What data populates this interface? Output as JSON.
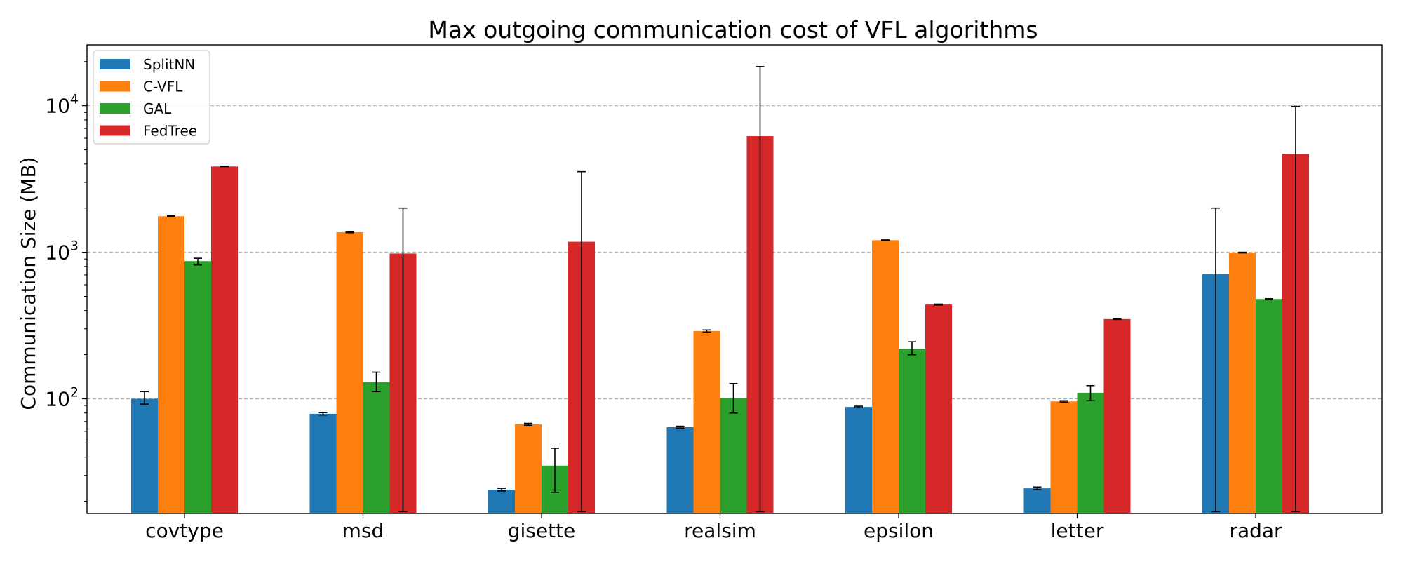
{
  "chart_data": {
    "type": "bar",
    "title": "Max outgoing communication cost of VFL algorithms",
    "xlabel": "",
    "ylabel": "Communication Size (MB)",
    "yscale": "log",
    "ylim": [
      16.5,
      26000
    ],
    "grid": "y-major-dashed",
    "legend_position": "top-left",
    "categories": [
      "covtype",
      "msd",
      "gisette",
      "realsim",
      "epsilon",
      "letter",
      "radar"
    ],
    "y_ticks": [
      {
        "value": 100,
        "base": "10",
        "exp": "2"
      },
      {
        "value": 1000,
        "base": "10",
        "exp": "3"
      },
      {
        "value": 10000,
        "base": "10",
        "exp": "4"
      }
    ],
    "series": [
      {
        "name": "SplitNN",
        "color": "#1f77b4",
        "values": [
          100,
          79,
          24,
          64,
          88,
          24.5,
          710
        ],
        "err_low": [
          92,
          77.5,
          23.5,
          63,
          87,
          24,
          17
        ],
        "err_high": [
          112,
          80.5,
          24.5,
          65,
          89,
          25,
          2000
        ]
      },
      {
        "name": "C-VFL",
        "color": "#ff7f0e",
        "values": [
          1760,
          1370,
          67,
          290,
          1210,
          96,
          995
        ],
        "err_low": [
          1750,
          1360,
          66,
          285,
          1205,
          95,
          990
        ],
        "err_high": [
          1770,
          1380,
          68,
          295,
          1215,
          97,
          1000
        ]
      },
      {
        "name": "GAL",
        "color": "#2ca02c",
        "values": [
          870,
          130,
          35,
          101,
          220,
          110,
          480
        ],
        "err_low": [
          820,
          112,
          23,
          80,
          200,
          97,
          478
        ],
        "err_high": [
          910,
          152,
          46,
          127,
          245,
          123,
          482
        ]
      },
      {
        "name": "FedTree",
        "color": "#d62728",
        "values": [
          3850,
          980,
          1180,
          6200,
          440,
          350,
          4700
        ],
        "err_low": [
          3840,
          17,
          17,
          17,
          437,
          348,
          17
        ],
        "err_high": [
          3860,
          2000,
          3550,
          18500,
          443,
          352,
          9900
        ]
      }
    ]
  }
}
